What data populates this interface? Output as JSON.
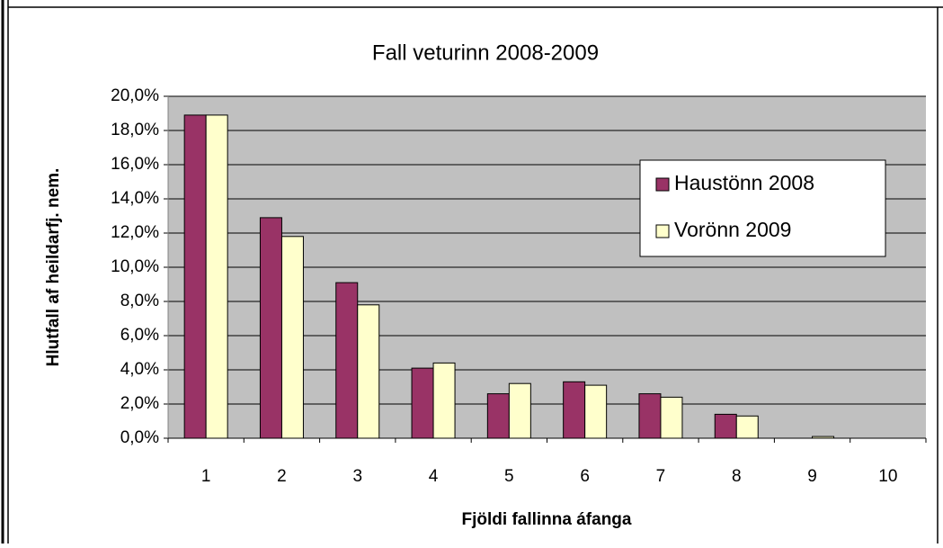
{
  "chart_data": {
    "type": "bar",
    "title": "Fall veturinn 2008-2009",
    "x_label": "Fjöldi fallinna áfanga",
    "y_label": "Hlutfall af heildarfj. nem.",
    "categories": [
      "1",
      "2",
      "3",
      "4",
      "5",
      "6",
      "7",
      "8",
      "9",
      "10"
    ],
    "series": [
      {
        "name": "Haustönn 2008",
        "color": "#993366",
        "values": [
          18.9,
          12.9,
          9.1,
          4.1,
          2.6,
          3.3,
          2.6,
          1.4,
          0,
          0
        ]
      },
      {
        "name": "Vorönn 2009",
        "color": "#ffffcc",
        "values": [
          18.9,
          11.8,
          7.8,
          4.4,
          3.2,
          3.1,
          2.4,
          1.3,
          0.1,
          0
        ]
      }
    ],
    "ylim": [
      0,
      20
    ],
    "yticks": [
      {
        "value": 0,
        "label": "0,0%"
      },
      {
        "value": 2,
        "label": "2,0%"
      },
      {
        "value": 4,
        "label": "4,0%"
      },
      {
        "value": 6,
        "label": "6,0%"
      },
      {
        "value": 8,
        "label": "8,0%"
      },
      {
        "value": 10,
        "label": "10,0%"
      },
      {
        "value": 12,
        "label": "12,0%"
      },
      {
        "value": 14,
        "label": "14,0%"
      },
      {
        "value": 16,
        "label": "16,0%"
      },
      {
        "value": 18,
        "label": "18,0%"
      },
      {
        "value": 20,
        "label": "20,0%"
      }
    ],
    "grid": true,
    "legend": "upper right"
  }
}
